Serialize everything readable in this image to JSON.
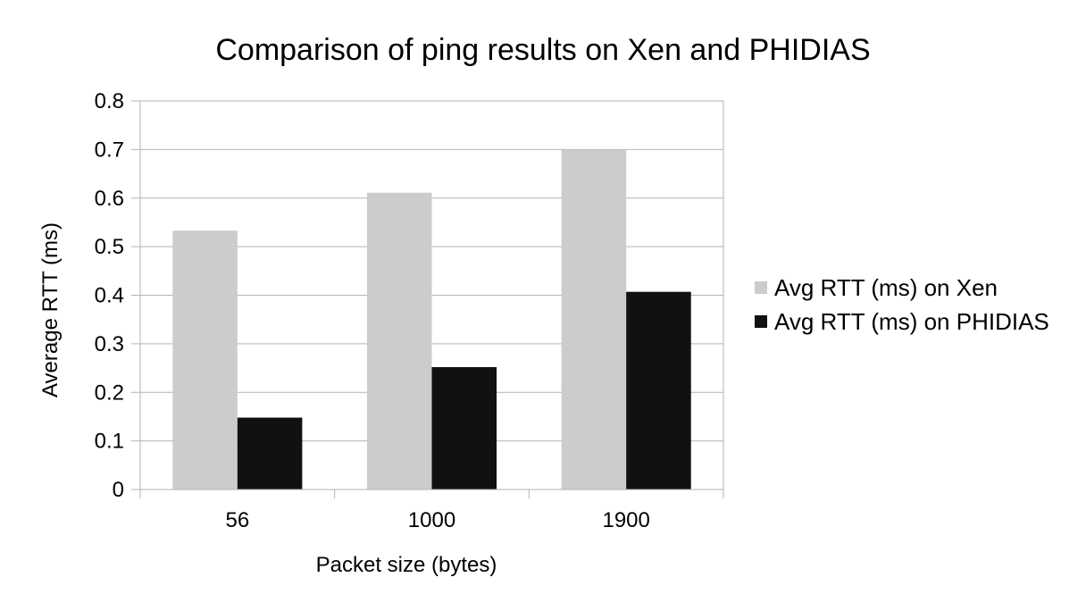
{
  "chart_data": {
    "type": "bar",
    "title": "Comparison of ping results on Xen and PHIDIAS",
    "xlabel": "Packet size (bytes)",
    "ylabel": "Average RTT (ms)",
    "categories": [
      "56",
      "1000",
      "1900"
    ],
    "ylim": [
      0,
      0.8
    ],
    "yticks": [
      "0",
      "0.1",
      "0.2",
      "0.3",
      "0.4",
      "0.5",
      "0.6",
      "0.7",
      "0.8"
    ],
    "grid": true,
    "legend_position": "right",
    "series": [
      {
        "name": "Avg RTT (ms) on Xen",
        "color": "#cccccc",
        "values": [
          0.533,
          0.611,
          0.7
        ]
      },
      {
        "name": "Avg RTT (ms) on PHIDIAS",
        "color": "#111111",
        "values": [
          0.148,
          0.252,
          0.407
        ]
      }
    ]
  }
}
